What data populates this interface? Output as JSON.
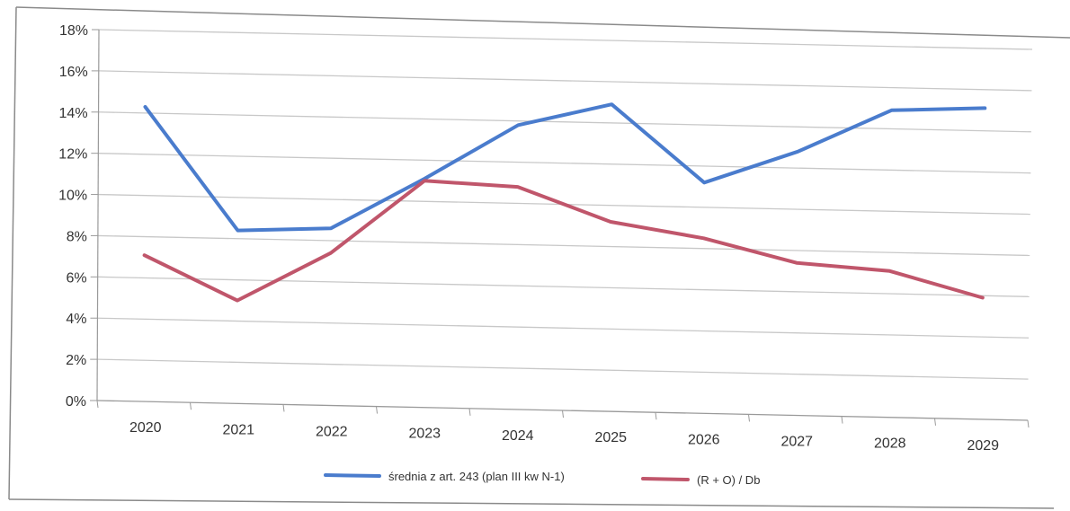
{
  "chart_data": {
    "type": "line",
    "title": "",
    "xlabel": "",
    "ylabel": "",
    "categories": [
      "2020",
      "2021",
      "2022",
      "2023",
      "2024",
      "2025",
      "2026",
      "2027",
      "2028",
      "2029"
    ],
    "ylim": [
      0,
      18
    ],
    "y_ticks": [
      "0%",
      "2%",
      "4%",
      "6%",
      "8%",
      "10%",
      "12%",
      "14%",
      "16%",
      "18%"
    ],
    "grid": true,
    "legend_position": "bottom",
    "series": [
      {
        "name": "średnia z art. 243 (plan III kw N-1)",
        "color": "#4a7ccd",
        "values": [
          14.3,
          8.4,
          8.6,
          11.1,
          13.8,
          14.9,
          11.2,
          12.8,
          14.9,
          15.1
        ]
      },
      {
        "name": "(R + O) / Db",
        "color": "#c0566b",
        "values": [
          7.1,
          5.0,
          7.4,
          11.0,
          10.8,
          9.2,
          8.5,
          7.4,
          7.1,
          5.9
        ]
      }
    ]
  }
}
